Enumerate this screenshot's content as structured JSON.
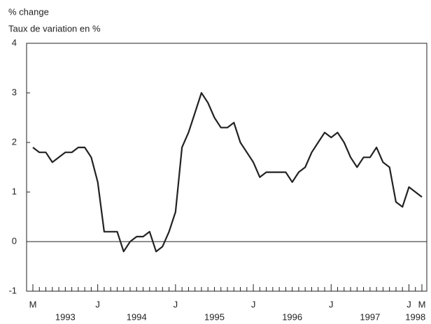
{
  "chart_data": {
    "type": "line",
    "ylabel": "% change",
    "ylabel_fr": "Taux de variation en %",
    "categories": [
      "M",
      null,
      null,
      null,
      null,
      null,
      null,
      null,
      null,
      null,
      "J",
      null,
      null,
      null,
      null,
      null,
      null,
      null,
      null,
      null,
      null,
      null,
      "J",
      null,
      null,
      null,
      null,
      null,
      null,
      null,
      null,
      null,
      null,
      null,
      "J",
      null,
      null,
      null,
      null,
      null,
      null,
      null,
      null,
      null,
      null,
      null,
      "J",
      null,
      null,
      null,
      null,
      null,
      null,
      null,
      null,
      null,
      null,
      null,
      "J",
      null,
      "M"
    ],
    "years": [
      "1993",
      "1994",
      "1995",
      "1996",
      "1997",
      "1998"
    ],
    "series": [
      {
        "color": "#222222",
        "values": [
          1.9,
          1.8,
          1.8,
          1.6,
          1.7,
          1.8,
          1.8,
          1.9,
          1.9,
          1.7,
          1.2,
          0.2,
          0.2,
          0.2,
          -0.2,
          0.0,
          0.1,
          0.1,
          0.2,
          -0.2,
          -0.1,
          0.2,
          0.6,
          1.9,
          2.2,
          2.6,
          3.0,
          2.8,
          2.5,
          2.3,
          2.3,
          2.4,
          2.0,
          1.8,
          1.6,
          1.3,
          1.4,
          1.4,
          1.4,
          1.4,
          1.2,
          1.4,
          1.5,
          1.8,
          2.0,
          2.2,
          2.1,
          2.2,
          2.0,
          1.7,
          1.5,
          1.7,
          1.7,
          1.9,
          1.6,
          1.5,
          0.8,
          0.7,
          1.1,
          1.0,
          0.9
        ]
      }
    ],
    "ylim": [
      -1,
      4
    ],
    "yticks": [
      -1,
      0,
      1,
      2,
      3,
      4
    ]
  }
}
